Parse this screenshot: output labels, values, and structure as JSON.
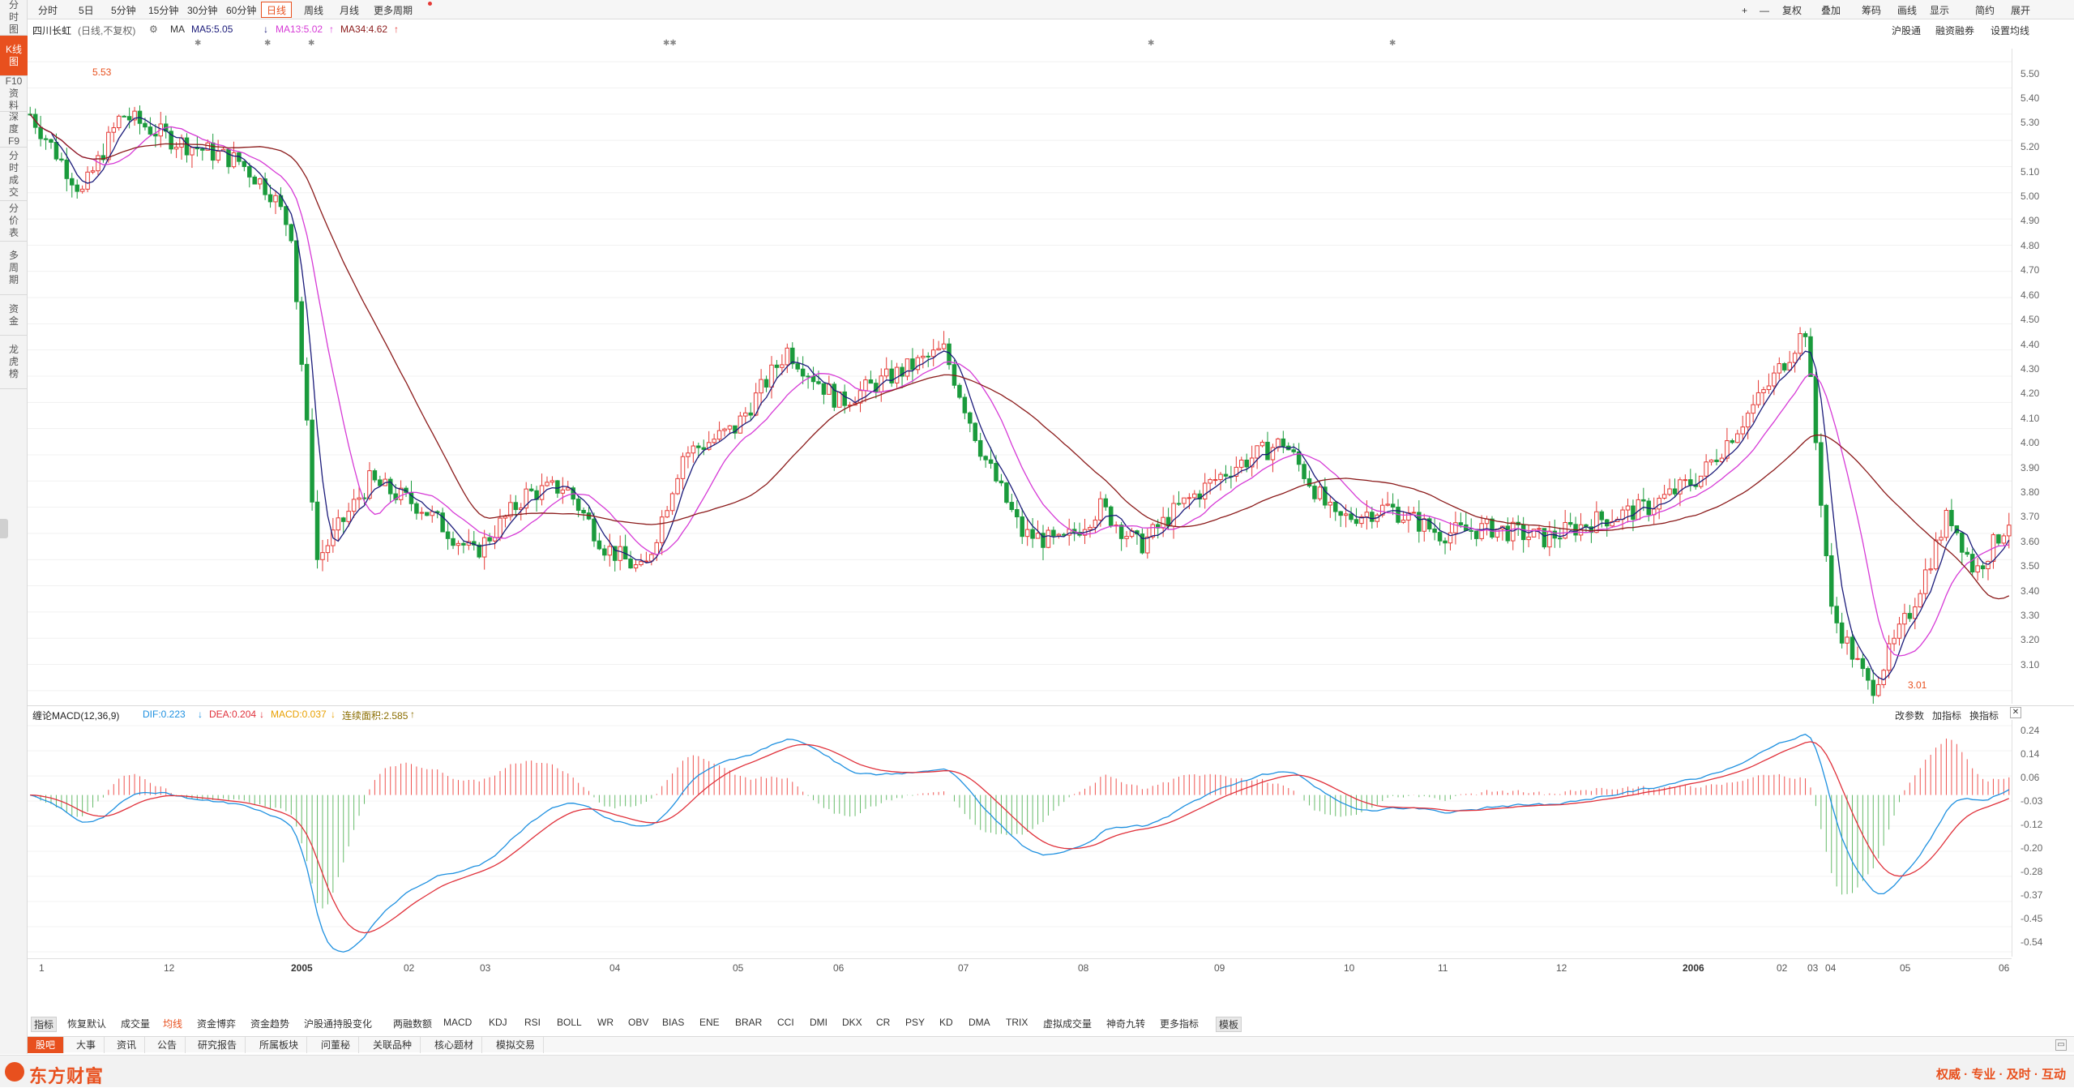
{
  "left_nav": [
    {
      "label": "分时图"
    },
    {
      "label": "K线图",
      "active": true
    },
    {
      "label": "F10资料"
    },
    {
      "label": "深度F9"
    },
    {
      "label": "分时成交"
    },
    {
      "label": "分价表"
    },
    {
      "label": "多周期"
    },
    {
      "label": "资金"
    },
    {
      "label": "龙虎榜"
    }
  ],
  "toolbar": {
    "periods": [
      "分时",
      "5日",
      "5分钟",
      "15分钟",
      "30分钟",
      "60分钟",
      "日线",
      "周线",
      "月线",
      "更多周期"
    ],
    "active_period": "日线",
    "right_buttons": [
      "+",
      "—",
      "复权",
      "叠加",
      "筹码",
      "画线",
      "显示",
      "简约",
      "展开"
    ]
  },
  "info": {
    "stock_name": "四川长虹",
    "mode": "(日线,不复权)",
    "ma_label": "MA",
    "ma5": "MA5:5.05",
    "ma13": "MA13:5.02",
    "ma34": "MA34:4.62",
    "right_links": [
      "沪股通",
      "融资融券",
      "设置均线"
    ]
  },
  "annotations": {
    "high": "5.53",
    "low": "3.01"
  },
  "price_axis": [
    "5.50",
    "5.40",
    "5.30",
    "5.20",
    "5.10",
    "5.00",
    "4.90",
    "4.80",
    "4.70",
    "4.60",
    "4.50",
    "4.40",
    "4.30",
    "4.20",
    "4.10",
    "4.00",
    "3.90",
    "3.80",
    "3.70",
    "3.60",
    "3.50",
    "3.40",
    "3.30",
    "3.20",
    "3.10"
  ],
  "macd": {
    "name": "缠论MACD(12,36,9)",
    "dif": "DIF:0.223",
    "dea": "DEA:0.204",
    "macd": "MACD:0.037",
    "area": "连续面积:2.585",
    "actions": [
      "改参数",
      "加指标",
      "换指标"
    ],
    "axis": [
      "0.24",
      "0.14",
      "0.06",
      "-0.03",
      "-0.12",
      "-0.20",
      "-0.28",
      "-0.37",
      "-0.45",
      "-0.54"
    ]
  },
  "date_axis": [
    "1",
    "12",
    "2005",
    "02",
    "03",
    "04",
    "05",
    "06",
    "07",
    "08",
    "09",
    "10",
    "11",
    "12",
    "2006",
    "02",
    "03",
    "04",
    "05",
    "06"
  ],
  "indicator_tabs": [
    "指标",
    "恢复默认",
    "成交量",
    "均线",
    "资金博弈",
    "资金趋势",
    "沪股通持股变化",
    "两融数额",
    "MACD",
    "KDJ",
    "RSI",
    "BOLL",
    "WR",
    "OBV",
    "BIAS",
    "ENE",
    "BRAR",
    "CCI",
    "DMI",
    "DKX",
    "CR",
    "PSY",
    "KD",
    "DMA",
    "TRIX",
    "虚拟成交量",
    "神奇九转",
    "更多指标",
    "模板"
  ],
  "active_indicator": "均线",
  "info_tabs": [
    "股吧",
    "大事",
    "资讯",
    "公告",
    "研究报告",
    "所属板块",
    "问董秘",
    "关联品种",
    "核心题材",
    "模拟交易"
  ],
  "footer": {
    "brand": "东方财富",
    "slogan": "权威 · 专业 · 及时 · 互动"
  },
  "colors": {
    "up": "#e53935",
    "down": "#1a9b3c",
    "ma5": "#1b1b7a",
    "ma13": "#d63ad6",
    "ma34": "#8b1a1a",
    "dif": "#1e90e0",
    "dea": "#e0303a",
    "accent": "#e8501e"
  }
}
